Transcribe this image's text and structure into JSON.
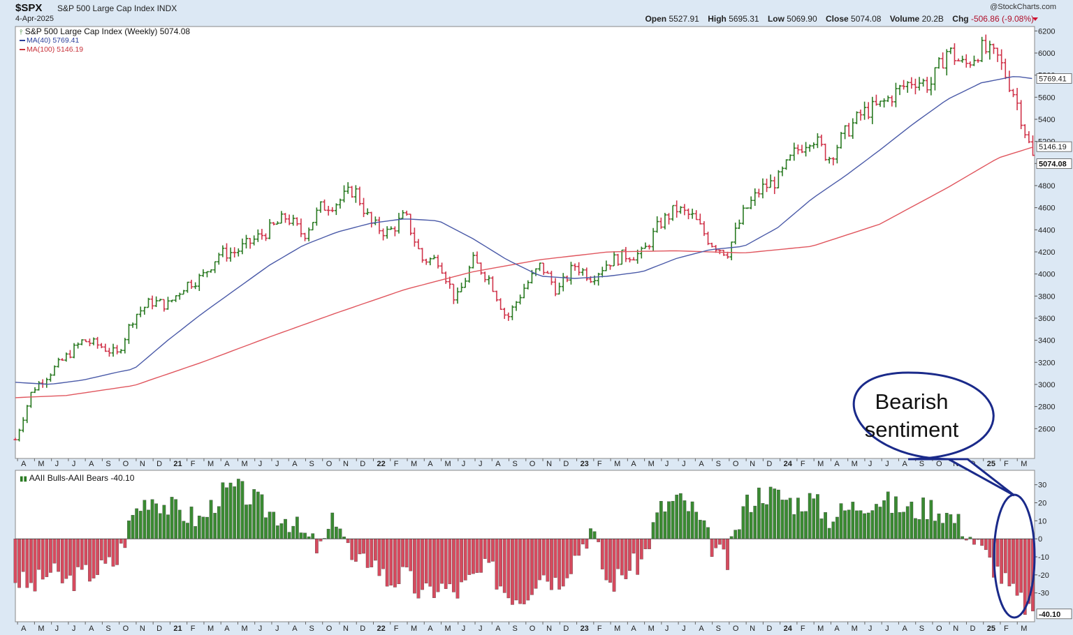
{
  "header": {
    "symbol": "$SPX",
    "name": "S&P 500 Large Cap Index",
    "exchange": "INDX",
    "date": "4-Apr-2025",
    "brand": "@StockCharts.com",
    "open_label": "Open",
    "open": "5527.91",
    "high_label": "High",
    "high": "5695.31",
    "low_label": "Low",
    "low": "5069.90",
    "close_label": "Close",
    "close": "5074.08",
    "volume_label": "Volume",
    "volume": "20.2B",
    "chg_label": "Chg",
    "chg": "-506.86 (-9.08%)"
  },
  "legend": {
    "main": "S&P 500 Large Cap Index (Weekly) 5074.08",
    "ma40": "MA(40) 5769.41",
    "ma100": "MA(100) 5146.19",
    "aaii": "AAII Bulls-AAII Bears -40.10"
  },
  "colors": {
    "up": "#2a7a22",
    "down": "#d0344a",
    "ma40": "#4a5aa8",
    "ma100": "#e0565e",
    "hist_up": "#3a8a32",
    "hist_down": "#d64a5e",
    "callout": "#1a2a8a"
  },
  "callout": {
    "line1": "Bearish",
    "line2": "sentiment"
  },
  "chart_data": [
    {
      "type": "ohlc",
      "title": "S&P 500 Large Cap Index (Weekly)",
      "y_ticks": [
        2600,
        2800,
        3000,
        3200,
        3400,
        3600,
        3800,
        4000,
        4200,
        4400,
        4600,
        4800,
        5000,
        5200,
        5400,
        5600,
        5800,
        6000,
        6200
      ],
      "ylim": [
        2330,
        6240
      ],
      "x_start": "2020-04",
      "x_end": "2025-04",
      "x_labels": [
        "A",
        "M",
        "J",
        "J",
        "A",
        "S",
        "O",
        "N",
        "D",
        "21",
        "F",
        "M",
        "A",
        "M",
        "J",
        "J",
        "A",
        "S",
        "O",
        "N",
        "D",
        "22",
        "F",
        "M",
        "A",
        "M",
        "J",
        "J",
        "A",
        "S",
        "O",
        "N",
        "D",
        "23",
        "F",
        "M",
        "A",
        "M",
        "J",
        "J",
        "A",
        "S",
        "O",
        "N",
        "D",
        "24",
        "F",
        "M",
        "A",
        "M",
        "J",
        "J",
        "A",
        "S",
        "O",
        "N",
        "D",
        "25",
        "F",
        "M"
      ],
      "close_points": [
        [
          "2020-04",
          2500
        ],
        [
          "2020-05",
          2950
        ],
        [
          "2020-06",
          3100
        ],
        [
          "2020-07",
          3250
        ],
        [
          "2020-08",
          3400
        ],
        [
          "2020-09",
          3350
        ],
        [
          "2020-10",
          3270
        ],
        [
          "2020-11",
          3620
        ],
        [
          "2020-12",
          3750
        ],
        [
          "2021-01",
          3720
        ],
        [
          "2021-02",
          3900
        ],
        [
          "2021-03",
          3970
        ],
        [
          "2021-04",
          4180
        ],
        [
          "2021-05",
          4200
        ],
        [
          "2021-06",
          4300
        ],
        [
          "2021-07",
          4400
        ],
        [
          "2021-08",
          4520
        ],
        [
          "2021-09",
          4350
        ],
        [
          "2021-10",
          4600
        ],
        [
          "2021-11",
          4650
        ],
        [
          "2021-12",
          4770
        ],
        [
          "2022-01",
          4450
        ],
        [
          "2022-02",
          4370
        ],
        [
          "2022-03",
          4530
        ],
        [
          "2022-04",
          4130
        ],
        [
          "2022-05",
          4130
        ],
        [
          "2022-06",
          3750
        ],
        [
          "2022-07",
          4120
        ],
        [
          "2022-08",
          3950
        ],
        [
          "2022-09",
          3590
        ],
        [
          "2022-10",
          3870
        ],
        [
          "2022-11",
          4080
        ],
        [
          "2022-12",
          3840
        ],
        [
          "2023-01",
          4080
        ],
        [
          "2023-02",
          3970
        ],
        [
          "2023-03",
          4110
        ],
        [
          "2023-04",
          4170
        ],
        [
          "2023-05",
          4180
        ],
        [
          "2023-06",
          4450
        ],
        [
          "2023-07",
          4590
        ],
        [
          "2023-08",
          4510
        ],
        [
          "2023-09",
          4290
        ],
        [
          "2023-10",
          4190
        ],
        [
          "2023-11",
          4560
        ],
        [
          "2023-12",
          4770
        ],
        [
          "2024-01",
          4850
        ],
        [
          "2024-02",
          5100
        ],
        [
          "2024-03",
          5250
        ],
        [
          "2024-04",
          5050
        ],
        [
          "2024-05",
          5280
        ],
        [
          "2024-06",
          5460
        ],
        [
          "2024-07",
          5520
        ],
        [
          "2024-08",
          5650
        ],
        [
          "2024-09",
          5760
        ],
        [
          "2024-10",
          5710
        ],
        [
          "2024-11",
          6030
        ],
        [
          "2024-12",
          5880
        ],
        [
          "2025-01",
          6040
        ],
        [
          "2025-02",
          5950
        ],
        [
          "2025-03",
          5610
        ],
        [
          "2025-04",
          5074
        ]
      ],
      "ma40_points": [
        [
          "2020-04",
          3020
        ],
        [
          "2020-06",
          3000
        ],
        [
          "2020-08",
          3040
        ],
        [
          "2020-10",
          3110
        ],
        [
          "2020-11",
          3140
        ],
        [
          "2021-01",
          3400
        ],
        [
          "2021-03",
          3640
        ],
        [
          "2021-05",
          3860
        ],
        [
          "2021-07",
          4080
        ],
        [
          "2021-09",
          4260
        ],
        [
          "2021-11",
          4380
        ],
        [
          "2022-01",
          4460
        ],
        [
          "2022-03",
          4500
        ],
        [
          "2022-05",
          4480
        ],
        [
          "2022-07",
          4320
        ],
        [
          "2022-09",
          4130
        ],
        [
          "2022-11",
          3980
        ],
        [
          "2023-01",
          3960
        ],
        [
          "2023-03",
          3980
        ],
        [
          "2023-05",
          4020
        ],
        [
          "2023-07",
          4140
        ],
        [
          "2023-09",
          4220
        ],
        [
          "2023-11",
          4250
        ],
        [
          "2024-01",
          4420
        ],
        [
          "2024-03",
          4680
        ],
        [
          "2024-05",
          4890
        ],
        [
          "2024-07",
          5120
        ],
        [
          "2024-09",
          5360
        ],
        [
          "2024-11",
          5580
        ],
        [
          "2025-01",
          5730
        ],
        [
          "2025-03",
          5790
        ],
        [
          "2025-04",
          5769.41
        ]
      ],
      "ma100_points": [
        [
          "2020-04",
          2880
        ],
        [
          "2020-07",
          2900
        ],
        [
          "2020-11",
          2990
        ],
        [
          "2021-03",
          3200
        ],
        [
          "2021-07",
          3430
        ],
        [
          "2021-11",
          3650
        ],
        [
          "2022-03",
          3860
        ],
        [
          "2022-07",
          4020
        ],
        [
          "2022-11",
          4130
        ],
        [
          "2023-03",
          4200
        ],
        [
          "2023-07",
          4210
        ],
        [
          "2023-11",
          4190
        ],
        [
          "2024-03",
          4250
        ],
        [
          "2024-07",
          4450
        ],
        [
          "2024-11",
          4780
        ],
        [
          "2025-02",
          5050
        ],
        [
          "2025-04",
          5146.19
        ]
      ],
      "last_values": {
        "close": 5074.08,
        "ma40": 5769.41,
        "ma100": 5146.19
      }
    },
    {
      "type": "bar",
      "title": "AAII Bulls-AAII Bears",
      "y_ticks": [
        -30,
        -20,
        -10,
        0,
        10,
        20,
        30
      ],
      "ylim": [
        -46,
        38
      ],
      "last_value": -40.1,
      "monthly_values": [
        [
          "2020-04",
          -22
        ],
        [
          "2020-05",
          -27
        ],
        [
          "2020-06",
          -18
        ],
        [
          "2020-07",
          -24
        ],
        [
          "2020-08",
          -20
        ],
        [
          "2020-09",
          -17
        ],
        [
          "2020-10",
          -12
        ],
        [
          "2020-11",
          15
        ],
        [
          "2020-12",
          24
        ],
        [
          "2021-01",
          18
        ],
        [
          "2021-02",
          14
        ],
        [
          "2021-03",
          10
        ],
        [
          "2021-04",
          24
        ],
        [
          "2021-05",
          28
        ],
        [
          "2021-06",
          22
        ],
        [
          "2021-07",
          15
        ],
        [
          "2021-08",
          12
        ],
        [
          "2021-09",
          2
        ],
        [
          "2021-10",
          -6
        ],
        [
          "2021-11",
          14
        ],
        [
          "2021-12",
          -16
        ],
        [
          "2022-01",
          -10
        ],
        [
          "2022-02",
          -24
        ],
        [
          "2022-03",
          -20
        ],
        [
          "2022-04",
          -32
        ],
        [
          "2022-05",
          -26
        ],
        [
          "2022-06",
          -30
        ],
        [
          "2022-07",
          -22
        ],
        [
          "2022-08",
          -16
        ],
        [
          "2022-09",
          -30
        ],
        [
          "2022-10",
          -32
        ],
        [
          "2022-11",
          -18
        ],
        [
          "2022-12",
          -24
        ],
        [
          "2023-01",
          -10
        ],
        [
          "2023-02",
          6
        ],
        [
          "2023-03",
          -26
        ],
        [
          "2023-04",
          -18
        ],
        [
          "2023-05",
          -12
        ],
        [
          "2023-06",
          16
        ],
        [
          "2023-07",
          22
        ],
        [
          "2023-08",
          16
        ],
        [
          "2023-09",
          -2
        ],
        [
          "2023-10",
          -14
        ],
        [
          "2023-11",
          18
        ],
        [
          "2023-12",
          26
        ],
        [
          "2024-01",
          24
        ],
        [
          "2024-02",
          20
        ],
        [
          "2024-03",
          22
        ],
        [
          "2024-04",
          12
        ],
        [
          "2024-05",
          16
        ],
        [
          "2024-06",
          20
        ],
        [
          "2024-07",
          22
        ],
        [
          "2024-08",
          18
        ],
        [
          "2024-09",
          16
        ],
        [
          "2024-10",
          18
        ],
        [
          "2024-11",
          14
        ],
        [
          "2024-12",
          6
        ],
        [
          "2025-01",
          -6
        ],
        [
          "2025-02",
          -18
        ],
        [
          "2025-03",
          -32
        ],
        [
          "2025-04",
          -40.1
        ]
      ]
    }
  ]
}
